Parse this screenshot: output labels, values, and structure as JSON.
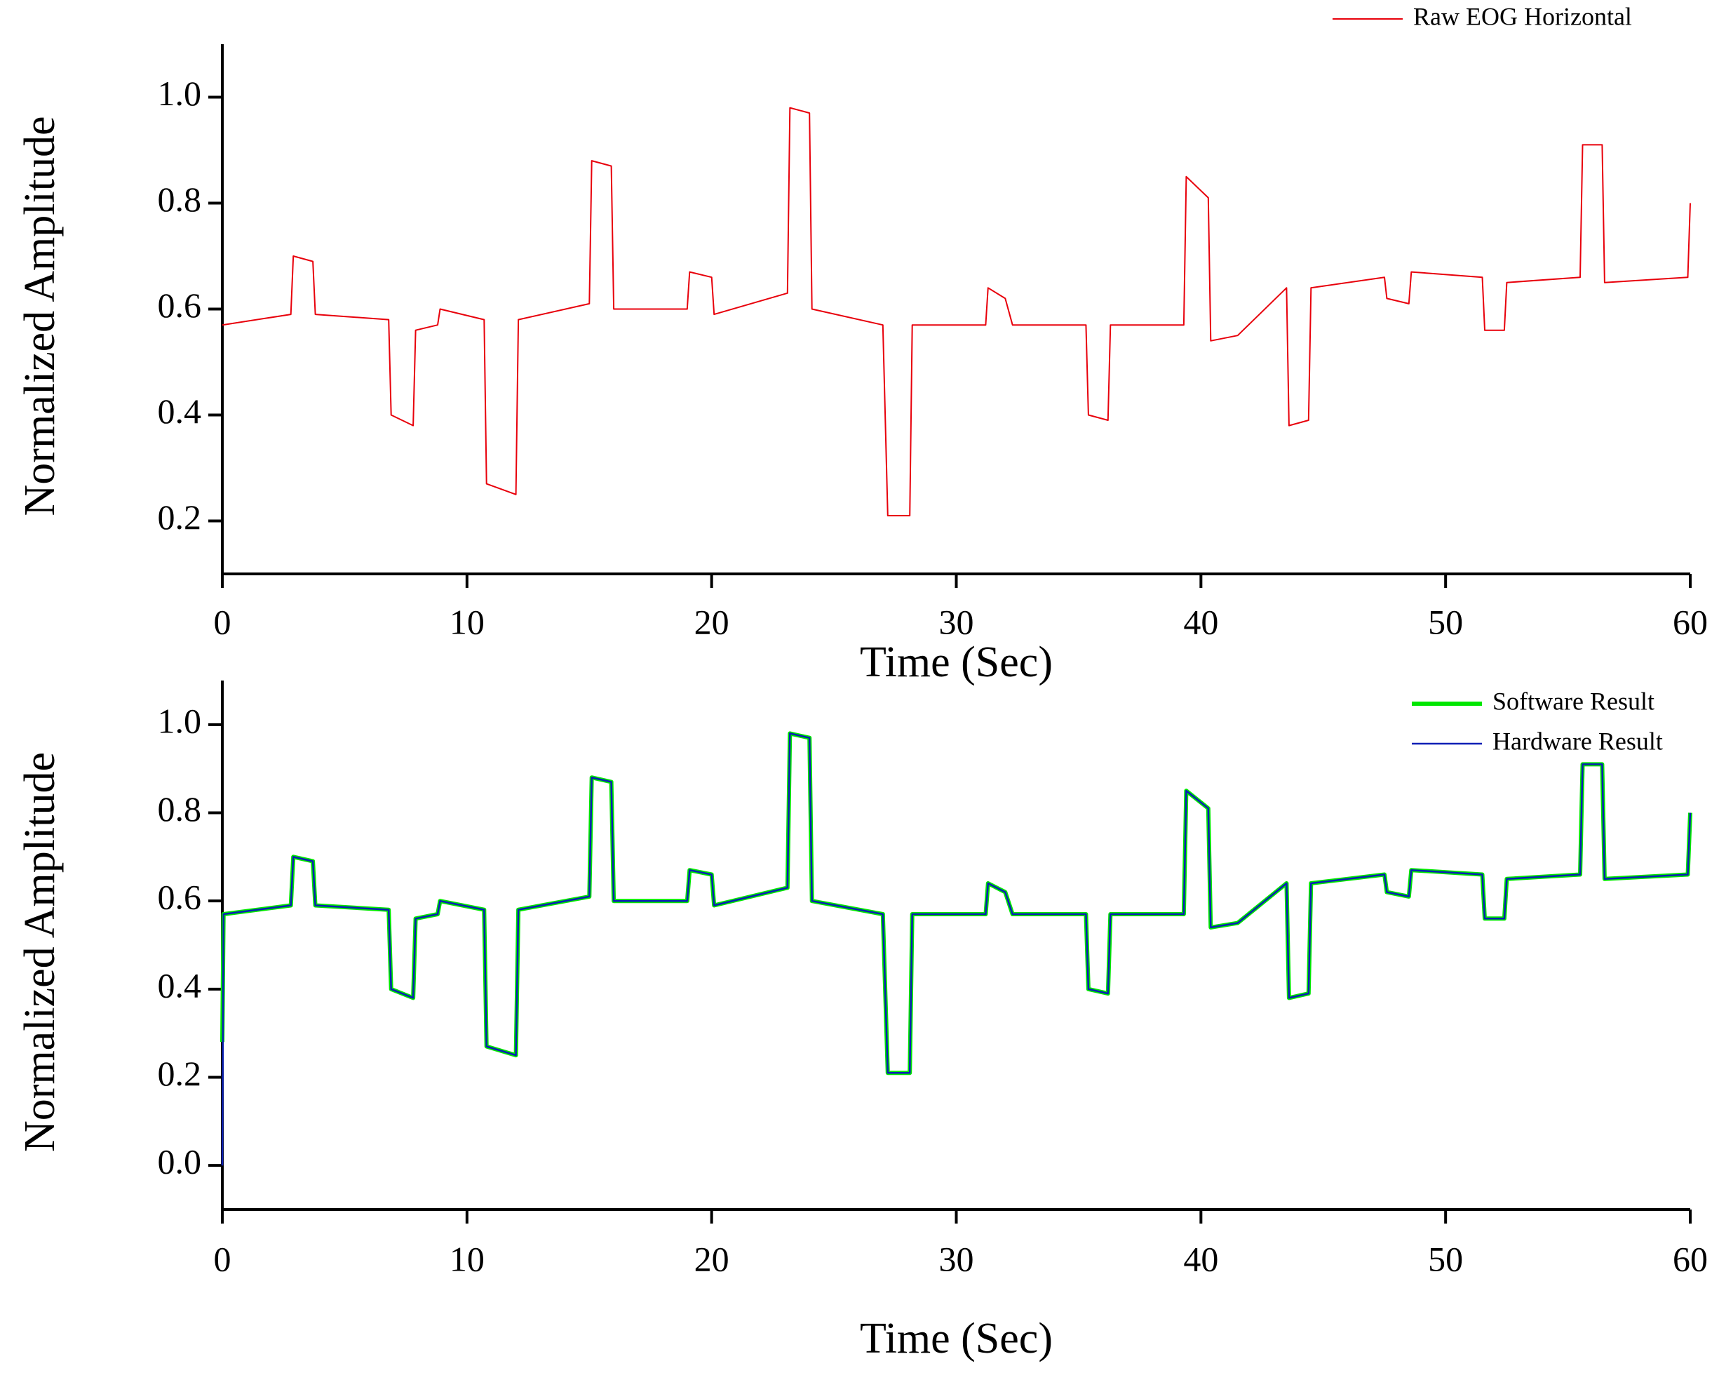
{
  "chart_data": [
    {
      "type": "line",
      "xlabel": "Time (Sec)",
      "ylabel": "Normalized Amplitude",
      "xlim": [
        0,
        60
      ],
      "xticks": [
        0,
        10,
        20,
        30,
        40,
        50,
        60
      ],
      "ylim": [
        0.1,
        1.1
      ],
      "yticks": [
        0.2,
        0.4,
        0.6,
        0.8,
        {
          "value": 1.0,
          "label": "1.0"
        }
      ],
      "legend": "upper right",
      "x": [
        0,
        2.8,
        2.9,
        3.7,
        3.8,
        6.8,
        6.9,
        7.8,
        7.9,
        8.8,
        8.9,
        10.7,
        10.8,
        12.0,
        12.1,
        15.0,
        15.1,
        15.9,
        16.0,
        19.0,
        19.1,
        20.0,
        20.1,
        23.1,
        23.2,
        24.0,
        24.1,
        27.0,
        27.2,
        28.1,
        28.2,
        31.2,
        31.3,
        32.0,
        32.3,
        35.3,
        35.4,
        36.2,
        36.3,
        39.3,
        39.4,
        40.3,
        40.4,
        41.5,
        43.5,
        43.6,
        44.4,
        44.5,
        47.5,
        47.6,
        48.5,
        48.6,
        51.5,
        51.6,
        52.4,
        52.5,
        55.5,
        55.6,
        56.4,
        56.5,
        59.9,
        60
      ],
      "series": [
        {
          "name": "Raw EOG Horizontal",
          "color": "#e8000b",
          "width": 2,
          "values": [
            0.57,
            0.59,
            0.7,
            0.69,
            0.59,
            0.58,
            0.4,
            0.38,
            0.56,
            0.57,
            0.6,
            0.58,
            0.27,
            0.25,
            0.58,
            0.61,
            0.88,
            0.87,
            0.6,
            0.6,
            0.67,
            0.66,
            0.59,
            0.63,
            0.98,
            0.97,
            0.6,
            0.57,
            0.21,
            0.21,
            0.57,
            0.57,
            0.64,
            0.62,
            0.57,
            0.57,
            0.4,
            0.39,
            0.57,
            0.57,
            0.85,
            0.81,
            0.54,
            0.55,
            0.64,
            0.38,
            0.39,
            0.64,
            0.66,
            0.62,
            0.61,
            0.67,
            0.66,
            0.56,
            0.56,
            0.65,
            0.66,
            0.91,
            0.91,
            0.65,
            0.66,
            0.8
          ]
        }
      ]
    },
    {
      "type": "line",
      "xlabel": "Time (Sec)",
      "ylabel": "Normalized Amplitude",
      "xlim": [
        0,
        60
      ],
      "xticks": [
        0,
        10,
        20,
        30,
        40,
        50,
        60
      ],
      "ylim": [
        -0.1,
        1.1
      ],
      "yticks": [
        {
          "value": 0.0,
          "label": "0.0"
        },
        0.2,
        0.4,
        0.6,
        0.8,
        {
          "value": 1.0,
          "label": "1.0"
        }
      ],
      "legend": "upper right",
      "x": [
        0,
        0.05,
        2.8,
        2.9,
        3.7,
        3.8,
        6.8,
        6.9,
        7.8,
        7.9,
        8.8,
        8.9,
        10.7,
        10.8,
        12.0,
        12.1,
        15.0,
        15.1,
        15.9,
        16.0,
        19.0,
        19.1,
        20.0,
        20.1,
        23.1,
        23.2,
        24.0,
        24.1,
        27.0,
        27.2,
        28.1,
        28.2,
        31.2,
        31.3,
        32.0,
        32.3,
        35.3,
        35.4,
        36.2,
        36.3,
        39.3,
        39.4,
        40.3,
        40.4,
        41.5,
        43.5,
        43.6,
        44.4,
        44.5,
        47.5,
        47.6,
        48.5,
        48.6,
        51.5,
        51.6,
        52.4,
        52.5,
        55.5,
        55.6,
        56.4,
        56.5,
        59.9,
        60
      ],
      "series": [
        {
          "name": "Software Result",
          "color": "#00e600",
          "width": 6,
          "values": [
            0.28,
            0.57,
            0.59,
            0.7,
            0.69,
            0.59,
            0.58,
            0.4,
            0.38,
            0.56,
            0.57,
            0.6,
            0.58,
            0.27,
            0.25,
            0.58,
            0.61,
            0.88,
            0.87,
            0.6,
            0.6,
            0.67,
            0.66,
            0.59,
            0.63,
            0.98,
            0.97,
            0.6,
            0.57,
            0.21,
            0.21,
            0.57,
            0.57,
            0.64,
            0.62,
            0.57,
            0.57,
            0.4,
            0.39,
            0.57,
            0.57,
            0.85,
            0.81,
            0.54,
            0.55,
            0.64,
            0.38,
            0.39,
            0.64,
            0.66,
            0.62,
            0.61,
            0.67,
            0.66,
            0.56,
            0.56,
            0.65,
            0.66,
            0.91,
            0.91,
            0.65,
            0.66,
            0.8
          ]
        },
        {
          "name": "Hardware Result",
          "color": "#0a1fb5",
          "width": 2.5,
          "values": [
            0.0,
            0.57,
            0.59,
            0.7,
            0.69,
            0.59,
            0.58,
            0.4,
            0.38,
            0.56,
            0.57,
            0.6,
            0.58,
            0.27,
            0.25,
            0.58,
            0.61,
            0.88,
            0.87,
            0.6,
            0.6,
            0.67,
            0.66,
            0.59,
            0.63,
            0.98,
            0.97,
            0.6,
            0.57,
            0.21,
            0.21,
            0.57,
            0.57,
            0.64,
            0.62,
            0.57,
            0.57,
            0.4,
            0.39,
            0.57,
            0.57,
            0.85,
            0.81,
            0.54,
            0.55,
            0.64,
            0.38,
            0.39,
            0.64,
            0.66,
            0.62,
            0.61,
            0.67,
            0.66,
            0.56,
            0.56,
            0.65,
            0.66,
            0.91,
            0.91,
            0.65,
            0.66,
            0.8
          ]
        }
      ]
    }
  ]
}
